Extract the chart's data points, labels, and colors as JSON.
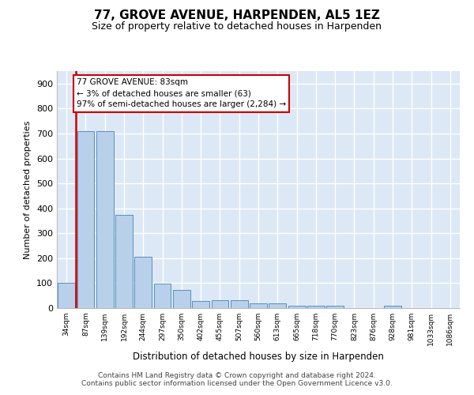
{
  "title": "77, GROVE AVENUE, HARPENDEN, AL5 1EZ",
  "subtitle": "Size of property relative to detached houses in Harpenden",
  "xlabel": "Distribution of detached houses by size in Harpenden",
  "ylabel": "Number of detached properties",
  "categories": [
    "34sqm",
    "87sqm",
    "139sqm",
    "192sqm",
    "244sqm",
    "297sqm",
    "350sqm",
    "402sqm",
    "455sqm",
    "507sqm",
    "560sqm",
    "613sqm",
    "665sqm",
    "718sqm",
    "770sqm",
    "823sqm",
    "876sqm",
    "928sqm",
    "981sqm",
    "1033sqm",
    "1086sqm"
  ],
  "values": [
    100,
    710,
    710,
    375,
    207,
    97,
    73,
    30,
    32,
    33,
    20,
    20,
    10,
    9,
    10,
    0,
    0,
    10,
    0,
    0,
    0
  ],
  "bar_color": "#b8d0ea",
  "bar_edge_color": "#5a8fbb",
  "bg_color": "#dce8f5",
  "property_line_color": "#cc0000",
  "property_line_x": 0.5,
  "annotation_line1": "77 GROVE AVENUE: 83sqm",
  "annotation_line2": "← 3% of detached houses are smaller (63)",
  "annotation_line3": "97% of semi-detached houses are larger (2,284) →",
  "annotation_box_edge": "#cc0000",
  "ylim_max": 950,
  "yticks": [
    0,
    100,
    200,
    300,
    400,
    500,
    600,
    700,
    800,
    900
  ],
  "footer_line1": "Contains HM Land Registry data © Crown copyright and database right 2024.",
  "footer_line2": "Contains public sector information licensed under the Open Government Licence v3.0."
}
